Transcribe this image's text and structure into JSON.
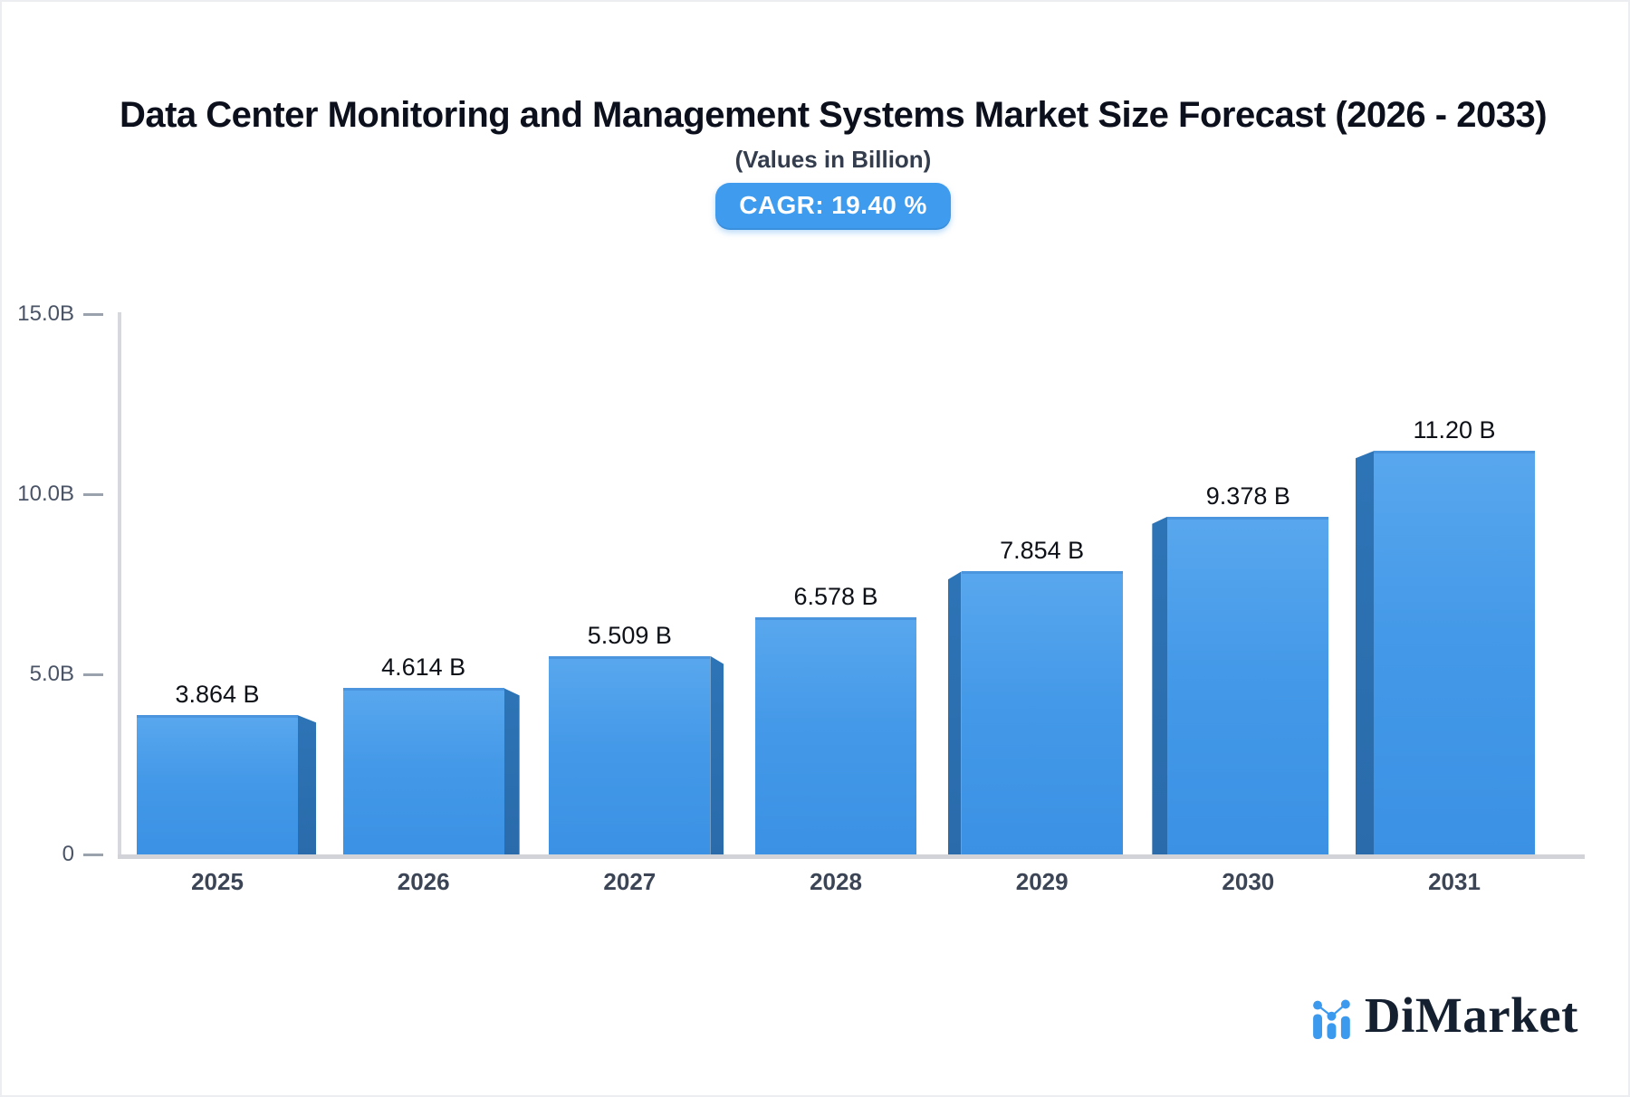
{
  "header": {
    "title": "Data Center Monitoring and Management Systems Market Size Forecast (2026 - 2033)",
    "subtitle": "(Values in Billion)",
    "cagr_badge": "CAGR: 19.40 %"
  },
  "chart_data": {
    "type": "bar",
    "style": "3d-perspective-side-faces, center vanishing point",
    "title": "Data Center Monitoring and Management Systems Market Size Forecast (2026 - 2033)",
    "subtitle": "(Values in Billion)",
    "badge": "CAGR: 19.40 %",
    "categories": [
      "2025",
      "2026",
      "2027",
      "2028",
      "2029",
      "2030",
      "2031"
    ],
    "values": [
      3.864,
      4.614,
      5.509,
      6.578,
      7.854,
      9.378,
      11.2
    ],
    "value_labels": [
      "3.864 B",
      "4.614 B",
      "5.509 B",
      "6.578 B",
      "7.854 B",
      "9.378 B",
      "11.20 B"
    ],
    "xlabel": "",
    "ylabel": "",
    "ylim": [
      0,
      15
    ],
    "yticks": [
      {
        "value": 0,
        "label": "0"
      },
      {
        "value": 5,
        "label": "5.0B"
      },
      {
        "value": 10,
        "label": "10.0B"
      },
      {
        "value": 15,
        "label": "15.0B"
      }
    ],
    "grid": false,
    "legend": false,
    "colors": {
      "bar_face": "#4499e8",
      "bar_face_light": "#58a7ee",
      "bar_side": "#2d74b6",
      "bar_side_dark": "#2a6bab",
      "axis": "#d4d5da",
      "tick_dash": "#9aa2ae",
      "tick_text": "#4a5466",
      "category_text": "#3b4555",
      "value_text": "#0d1117",
      "badge_bg": "#3f9bee",
      "badge_text": "#ffffff"
    }
  },
  "brand": {
    "name": "DiMarket",
    "icon": "bar-chart-logo-icon",
    "text_color": "#141f2f",
    "accent_color": "#3b99ee"
  }
}
